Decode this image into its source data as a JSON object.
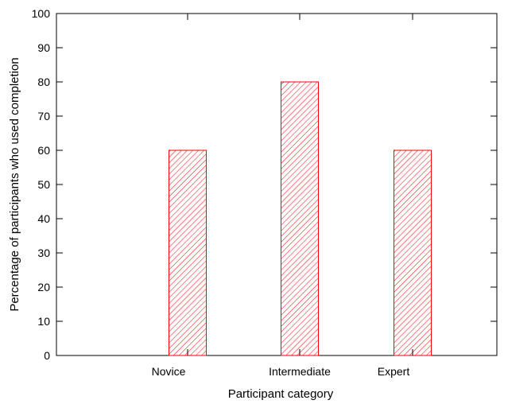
{
  "chart_data": {
    "type": "bar",
    "categories": [
      "Novice",
      "Intermediate",
      "Expert"
    ],
    "values": [
      60,
      80,
      60
    ],
    "xlabel": "Participant category",
    "ylabel": "Percentage of participants who used completion",
    "ylim": [
      0,
      100
    ],
    "yticks": [
      0,
      10,
      20,
      30,
      40,
      50,
      60,
      70,
      80,
      90,
      100
    ],
    "grid": false,
    "legend": "none",
    "bar_color": "#ff0000",
    "bar_pattern": "diagonal-hatch"
  }
}
